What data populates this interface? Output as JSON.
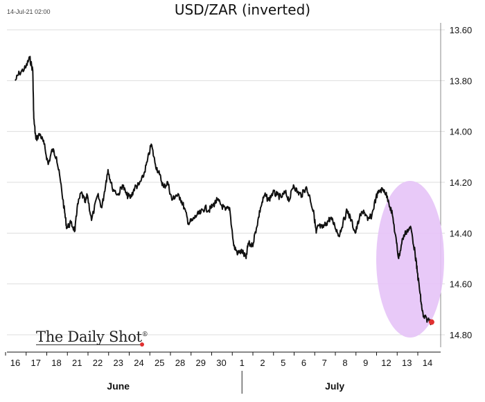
{
  "timestamp": "14-Jul-21 02:00",
  "logo_text": "The Daily Shot",
  "logo_mark": "®",
  "colors": {
    "line": "#111111",
    "highlight_fill": "#e6c3f7",
    "last_point": "#e03030",
    "grid": "#dddddd"
  },
  "chart_data": {
    "type": "line",
    "title": "USD/ZAR (inverted)",
    "y_inverted": true,
    "ylim": [
      13.6,
      14.8
    ],
    "yticks": [
      "13.60",
      "13.80",
      "14.00",
      "14.20",
      "14.40",
      "14.60",
      "14.80"
    ],
    "ytick_values": [
      13.6,
      13.8,
      14.0,
      14.2,
      14.4,
      14.6,
      14.8
    ],
    "grid": true,
    "categories": [
      "16",
      "17",
      "18",
      "21",
      "22",
      "23",
      "24",
      "25",
      "28",
      "29",
      "30",
      "1",
      "2",
      "5",
      "6",
      "7",
      "8",
      "9",
      "12",
      "13",
      "14"
    ],
    "month_labels": [
      "June",
      "July"
    ],
    "month_spans": [
      [
        0,
        10
      ],
      [
        11,
        20
      ]
    ],
    "series": [
      {
        "x": [
          0.0,
          0.2,
          0.5,
          0.7,
          0.85,
          0.9,
          1.0,
          1.2,
          1.4,
          1.6,
          1.8,
          2.0,
          2.2,
          2.4,
          2.5,
          2.7,
          2.9,
          3.0,
          3.2,
          3.4,
          3.5,
          3.7,
          4.0,
          4.2,
          4.4,
          4.5,
          4.7,
          5.0,
          5.2,
          5.4,
          5.6,
          5.8,
          6.0,
          6.2,
          6.4,
          6.6,
          6.8,
          7.0,
          7.2,
          7.4,
          7.6,
          7.8,
          8.0,
          8.2,
          8.4,
          8.6,
          8.8,
          9.0,
          9.2,
          9.4,
          9.6,
          9.8,
          10.0,
          10.2,
          10.4,
          10.6,
          10.8,
          11.0,
          11.2,
          11.3,
          11.5,
          11.7,
          11.9,
          12.1,
          12.3,
          12.5,
          12.7,
          12.9,
          13.1,
          13.3,
          13.5,
          13.7,
          13.9,
          14.1,
          14.3,
          14.5,
          14.6,
          14.7,
          14.9,
          15.1,
          15.3,
          15.5,
          15.7,
          15.9,
          16.1,
          16.3,
          16.5,
          16.7,
          16.9,
          17.1,
          17.3,
          17.5,
          17.7,
          17.9,
          18.1,
          18.3,
          18.5,
          18.6,
          18.8,
          19.0,
          19.2,
          19.4,
          19.5,
          19.6,
          19.7,
          19.8,
          20.0,
          20.2
        ],
        "values": [
          13.8,
          13.77,
          13.75,
          13.71,
          13.76,
          13.95,
          14.03,
          14.01,
          14.05,
          14.13,
          14.07,
          14.1,
          14.2,
          14.32,
          14.38,
          14.36,
          14.39,
          14.3,
          14.24,
          14.28,
          14.25,
          14.35,
          14.25,
          14.3,
          14.2,
          14.15,
          14.22,
          14.25,
          14.21,
          14.25,
          14.26,
          14.22,
          14.21,
          14.18,
          14.12,
          14.05,
          14.13,
          14.17,
          14.22,
          14.2,
          14.27,
          14.25,
          14.26,
          14.3,
          14.36,
          14.35,
          14.33,
          14.32,
          14.3,
          14.31,
          14.29,
          14.27,
          14.29,
          14.31,
          14.3,
          14.45,
          14.48,
          14.47,
          14.5,
          14.44,
          14.45,
          14.38,
          14.3,
          14.25,
          14.27,
          14.24,
          14.25,
          14.26,
          14.24,
          14.27,
          14.21,
          14.24,
          14.25,
          14.22,
          14.26,
          14.33,
          14.4,
          14.37,
          14.38,
          14.36,
          14.34,
          14.37,
          14.41,
          14.36,
          14.31,
          14.35,
          14.4,
          14.34,
          14.31,
          14.35,
          14.33,
          14.26,
          14.23,
          14.23,
          14.27,
          14.33,
          14.44,
          14.5,
          14.42,
          14.39,
          14.38,
          14.48,
          14.55,
          14.61,
          14.68,
          14.73,
          14.74,
          14.75
        ]
      }
    ]
  }
}
